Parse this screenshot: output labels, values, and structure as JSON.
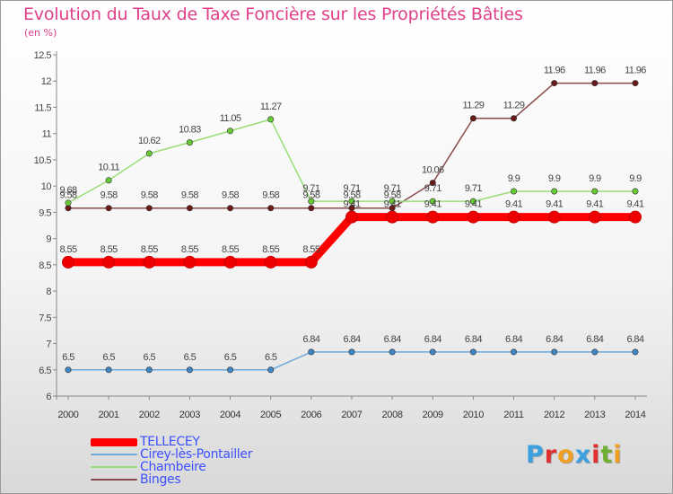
{
  "header": {
    "title": "Evolution du Taux de Taxe Foncière sur les Propriétés Bâties",
    "subtitle": "(en %)"
  },
  "logo": {
    "text": "Proxiti",
    "colors": [
      "#3aa0e0",
      "#e03030",
      "#f0a020",
      "#3aa0e0",
      "#e03030",
      "#70b030",
      "#f0a020"
    ]
  },
  "chart_data": {
    "type": "line",
    "x": [
      "2000",
      "2001",
      "2002",
      "2003",
      "2004",
      "2005",
      "2006",
      "2007",
      "2008",
      "2009",
      "2010",
      "2011",
      "2012",
      "2013",
      "2014"
    ],
    "ylim": [
      6,
      12.5
    ],
    "yticks": [
      "6",
      "6.5",
      "7",
      "7.5",
      "8",
      "8.5",
      "9",
      "9.5",
      "10",
      "10.5",
      "11",
      "11.5",
      "12",
      "12.5"
    ],
    "grid": false,
    "legend": "bottom-left",
    "series": [
      {
        "name": "TELLECEY",
        "color": "#ee0000",
        "stroke": "#ff0000",
        "width": 9,
        "marker": 6.5,
        "values": [
          8.55,
          8.55,
          8.55,
          8.55,
          8.55,
          8.55,
          8.55,
          9.41,
          9.41,
          9.41,
          9.41,
          9.41,
          9.41,
          9.41,
          9.41
        ],
        "labels": [
          "8.55",
          "8.55",
          "8.55",
          "8.55",
          "8.55",
          "8.55",
          "8.55",
          "9.41",
          "9.41",
          "9.41",
          "9.41",
          "9.41",
          "9.41",
          "9.41",
          "9.41"
        ]
      },
      {
        "name": "Cirey-lès-Pontailler",
        "color": "#3f86c4",
        "stroke": "#6da8dc",
        "width": 1.5,
        "marker": 3.2,
        "values": [
          6.5,
          6.5,
          6.5,
          6.5,
          6.5,
          6.5,
          6.84,
          6.84,
          6.84,
          6.84,
          6.84,
          6.84,
          6.84,
          6.84,
          6.84
        ],
        "labels": [
          "6.5",
          "6.5",
          "6.5",
          "6.5",
          "6.5",
          "6.5",
          "6.84",
          "6.84",
          "6.84",
          "6.84",
          "6.84",
          "6.84",
          "6.84",
          "6.84",
          "6.84"
        ]
      },
      {
        "name": "Chambeire",
        "color": "#66cc33",
        "stroke": "#99dd77",
        "width": 1.5,
        "marker": 3.2,
        "values": [
          9.68,
          10.11,
          10.62,
          10.83,
          11.05,
          11.27,
          9.71,
          9.71,
          9.71,
          9.71,
          9.71,
          9.9,
          9.9,
          9.9,
          9.9
        ],
        "labels": [
          "9.68",
          "10.11",
          "10.62",
          "10.83",
          "11.05",
          "11.27",
          "9.71",
          "9.71",
          "9.71",
          "9.71",
          "9.71",
          "9.9",
          "9.9",
          "9.9",
          "9.9"
        ]
      },
      {
        "name": "Binges",
        "color": "#6b1a1a",
        "stroke": "#8a4a4a",
        "width": 1.5,
        "marker": 3.2,
        "values": [
          9.58,
          9.58,
          9.58,
          9.58,
          9.58,
          9.58,
          9.58,
          9.58,
          9.58,
          10.06,
          11.29,
          11.29,
          11.96,
          11.96,
          11.96
        ],
        "labels": [
          "9.58",
          "9.58",
          "9.58",
          "9.58",
          "9.58",
          "9.58",
          "9.58",
          "9.58",
          "9.58",
          "10.06",
          "11.29",
          "11.29",
          "11.96",
          "11.96",
          "11.96"
        ]
      }
    ]
  }
}
